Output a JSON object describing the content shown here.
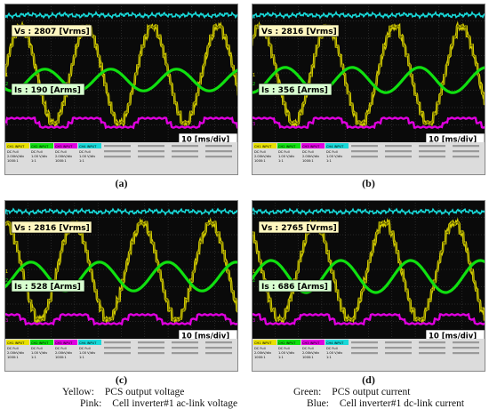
{
  "chart_data": [
    {
      "type": "line",
      "panel_label": "(a)",
      "vs_label": "Vs : 2807 [Vrms]",
      "is_label": "Is : 190 [Arms]",
      "timebase_label": "10 [ms/div]",
      "vs_rms": 2807,
      "is_rms": 190,
      "series": [
        {
          "name": "Yellow",
          "color": "#e8e000"
        },
        {
          "name": "Green",
          "color": "#10e010"
        },
        {
          "name": "Pink",
          "color": "#e000e0"
        },
        {
          "name": "Blue",
          "color": "#18d8d8"
        }
      ]
    },
    {
      "type": "line",
      "panel_label": "(b)",
      "vs_label": "Vs : 2816 [Vrms]",
      "is_label": "Is : 356 [Arms]",
      "timebase_label": "10 [ms/div]",
      "vs_rms": 2816,
      "is_rms": 356,
      "series": [
        {
          "name": "Yellow",
          "color": "#e8e000"
        },
        {
          "name": "Green",
          "color": "#10e010"
        },
        {
          "name": "Pink",
          "color": "#e000e0"
        },
        {
          "name": "Blue",
          "color": "#18d8d8"
        }
      ]
    },
    {
      "type": "line",
      "panel_label": "(c)",
      "vs_label": "Vs : 2816 [Vrms]",
      "is_label": "Is : 528 [Arms]",
      "timebase_label": "10 [ms/div]",
      "vs_rms": 2816,
      "is_rms": 528,
      "series": [
        {
          "name": "Yellow",
          "color": "#e8e000"
        },
        {
          "name": "Green",
          "color": "#10e010"
        },
        {
          "name": "Pink",
          "color": "#e000e0"
        },
        {
          "name": "Blue",
          "color": "#18d8d8"
        }
      ]
    },
    {
      "type": "line",
      "panel_label": "(d)",
      "vs_label": "Vs : 2765 [Vrms]",
      "is_label": "Is : 686 [Arms]",
      "timebase_label": "10 [ms/div]",
      "vs_rms": 2765,
      "is_rms": 686,
      "series": [
        {
          "name": "Yellow",
          "color": "#e8e000"
        },
        {
          "name": "Green",
          "color": "#10e010"
        },
        {
          "name": "Pink",
          "color": "#e000e0"
        },
        {
          "name": "Blue",
          "color": "#18d8d8"
        }
      ]
    }
  ],
  "captions": [
    "(a)",
    "(b)",
    "(c)",
    "(d)"
  ],
  "legend": {
    "yellow": {
      "key": "Yellow:",
      "value": "PCS output voltage"
    },
    "pink": {
      "key": "Pink:",
      "value": "Cell inverter#1 ac-link voltage"
    },
    "green": {
      "key": "Green:",
      "value": "PCS output current"
    },
    "blue": {
      "key": "Blue:",
      "value": "Cell inverter#1 dc-link current"
    }
  },
  "scope_footer": {
    "ch1": "CH1 INPUT",
    "ch2": "CH2 INPUT",
    "ch3": "CH3 INPUT",
    "ch4": "CH4 INPUT",
    "coupling": "DC Full",
    "scale_v": "2.00kV/div",
    "scale_i": "1.00 V/div",
    "ratio_v": "1000:1",
    "ratio_i": "1:1"
  }
}
